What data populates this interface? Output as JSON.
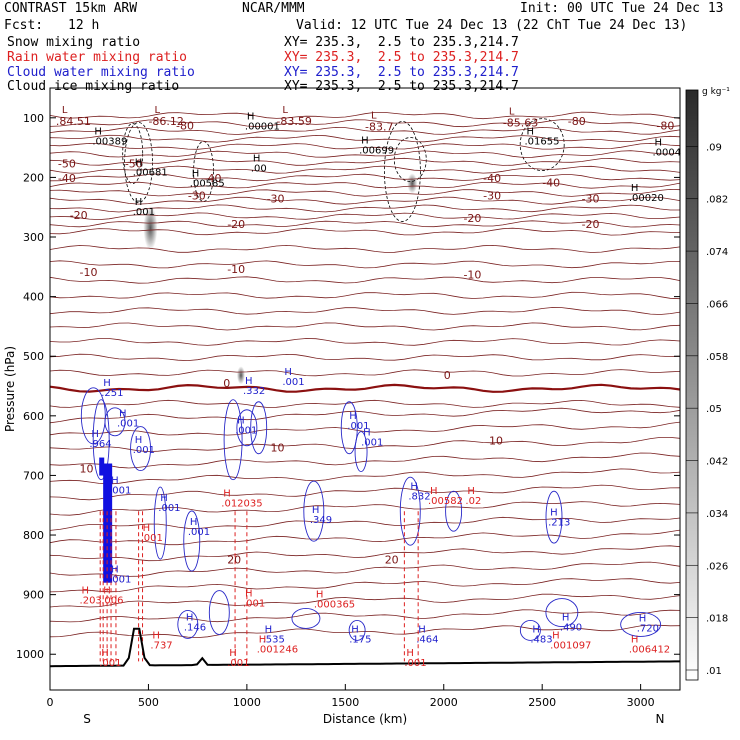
{
  "header": {
    "model": "CONTRAST 15km ARW",
    "org": "NCAR/MMM",
    "init": "Init: 00 UTC Tue 24 Dec 13",
    "fcst_label": "Fcst:",
    "fcst_value": "12 h",
    "valid": "Valid: 12 UTC Tue 24 Dec 13 (22 ChT Tue 24 Dec 13)",
    "fields": [
      {
        "name": "Snow mixing ratio",
        "xy": "XY= 235.3,  2.5 to 235.3,214.7",
        "color": "#000000"
      },
      {
        "name": "Rain water mixing ratio",
        "xy": "XY= 235.3,  2.5 to 235.3,214.7",
        "color": "#dd2020"
      },
      {
        "name": "Cloud water mixing ratio",
        "xy": "XY= 235.3,  2.5 to 235.3,214.7",
        "color": "#2020cc"
      },
      {
        "name": "Cloud ice mixing ratio",
        "xy": "XY= 235.3,  2.5 to 235.3,214.7",
        "color": "#000000"
      }
    ]
  },
  "chart_data": {
    "type": "vertical cross-section",
    "xlabel": "Distance (km)",
    "ylabel": "Pressure (hPa)",
    "x_ticks": [
      0,
      500,
      1000,
      1500,
      2000,
      2500,
      3000
    ],
    "y_ticks": [
      100,
      200,
      300,
      400,
      500,
      600,
      700,
      800,
      900,
      1000
    ],
    "xlim": [
      0,
      3200
    ],
    "ylim": [
      1060,
      50
    ],
    "left_end": "S",
    "right_end": "N",
    "colorbar": {
      "unit": "g kg⁻¹",
      "levels": [
        ".01",
        ".018",
        ".026",
        ".034",
        ".042",
        ".05",
        ".058",
        ".066",
        ".074",
        ".082",
        ".09"
      ]
    },
    "temperature_labels": [
      {
        "x": 40,
        "p": 183,
        "text": "-50"
      },
      {
        "x": 380,
        "p": 183,
        "text": "-50"
      },
      {
        "x": 40,
        "p": 208,
        "text": "-40"
      },
      {
        "x": 780,
        "p": 208,
        "text": "-40"
      },
      {
        "x": 2200,
        "p": 208,
        "text": "-40"
      },
      {
        "x": 2500,
        "p": 215,
        "text": "-40"
      },
      {
        "x": 700,
        "p": 237,
        "text": "-30"
      },
      {
        "x": 1100,
        "p": 242,
        "text": "-30"
      },
      {
        "x": 2200,
        "p": 237,
        "text": "-30"
      },
      {
        "x": 2700,
        "p": 242,
        "text": "-30"
      },
      {
        "x": 100,
        "p": 270,
        "text": "-20"
      },
      {
        "x": 900,
        "p": 285,
        "text": "-20"
      },
      {
        "x": 2100,
        "p": 275,
        "text": "-20"
      },
      {
        "x": 2700,
        "p": 285,
        "text": "-20"
      },
      {
        "x": 150,
        "p": 365,
        "text": "-10"
      },
      {
        "x": 900,
        "p": 360,
        "text": "-10"
      },
      {
        "x": 2100,
        "p": 370,
        "text": "-10"
      },
      {
        "x": 2000,
        "p": 538,
        "text": "0"
      },
      {
        "x": 880,
        "p": 552,
        "text": "0"
      },
      {
        "x": 1120,
        "p": 660,
        "text": "10"
      },
      {
        "x": 2230,
        "p": 648,
        "text": "10"
      },
      {
        "x": 150,
        "p": 695,
        "text": "10"
      },
      {
        "x": 900,
        "p": 848,
        "text": "20"
      },
      {
        "x": 1700,
        "p": 848,
        "text": "20"
      },
      {
        "x": 640,
        "p": 120,
        "text": "-80"
      },
      {
        "x": 2630,
        "p": 112,
        "text": "-80"
      },
      {
        "x": 3080,
        "p": 120,
        "text": "-80"
      }
    ],
    "low_labels": [
      {
        "x": 30,
        "p": 105,
        "text": ".84.51"
      },
      {
        "x": 500,
        "p": 105,
        "text": "-86.12"
      },
      {
        "x": 1150,
        "p": 105,
        "text": "-83.59"
      },
      {
        "x": 1600,
        "p": 115,
        "text": "-83.7"
      },
      {
        "x": 2300,
        "p": 108,
        "text": "-85.63"
      }
    ],
    "ice_maxima": [
      {
        "x": 215,
        "p": 145,
        "text": ".00389"
      },
      {
        "x": 420,
        "p": 197,
        "text": ".00681"
      },
      {
        "x": 710,
        "p": 215,
        "text": ".00585"
      },
      {
        "x": 1020,
        "p": 190,
        "text": ".00"
      },
      {
        "x": 990,
        "p": 120,
        "text": ".00001"
      },
      {
        "x": 1570,
        "p": 160,
        "text": ".00699"
      },
      {
        "x": 2410,
        "p": 145,
        "text": ".01655"
      },
      {
        "x": 3060,
        "p": 163,
        "text": ".0004"
      },
      {
        "x": 2940,
        "p": 240,
        "text": ".00020"
      },
      {
        "x": 420,
        "p": 263,
        "text": ".001"
      }
    ],
    "cloud_water_maxima": [
      {
        "x": 200,
        "p": 652,
        "text": ".964"
      },
      {
        "x": 260,
        "p": 567,
        "text": ".251"
      },
      {
        "x": 340,
        "p": 618,
        "text": ".001"
      },
      {
        "x": 420,
        "p": 662,
        "text": ".001"
      },
      {
        "x": 980,
        "p": 563,
        "text": ".332"
      },
      {
        "x": 1180,
        "p": 548,
        "text": ".001"
      },
      {
        "x": 940,
        "p": 630,
        "text": ".001"
      },
      {
        "x": 1510,
        "p": 622,
        "text": ".001"
      },
      {
        "x": 1580,
        "p": 650,
        "text": ".001"
      },
      {
        "x": 550,
        "p": 760,
        "text": ".001"
      },
      {
        "x": 700,
        "p": 800,
        "text": ".001"
      },
      {
        "x": 1320,
        "p": 780,
        "text": ".349"
      },
      {
        "x": 1820,
        "p": 740,
        "text": ".832"
      },
      {
        "x": 2530,
        "p": 784,
        "text": ".213"
      },
      {
        "x": 300,
        "p": 730,
        "text": ".001"
      },
      {
        "x": 300,
        "p": 880,
        "text": ".001"
      },
      {
        "x": 680,
        "p": 960,
        "text": ".146"
      },
      {
        "x": 1080,
        "p": 980,
        "text": ".535"
      },
      {
        "x": 1520,
        "p": 980,
        "text": ".175"
      },
      {
        "x": 1860,
        "p": 980,
        "text": ".464"
      },
      {
        "x": 2440,
        "p": 980,
        "text": ".483"
      },
      {
        "x": 2590,
        "p": 960,
        "text": ".490"
      },
      {
        "x": 2980,
        "p": 962,
        "text": ".720"
      }
    ],
    "rain_maxima": [
      {
        "x": 870,
        "p": 752,
        "text": ".012035"
      },
      {
        "x": 2110,
        "p": 748,
        "text": ".02"
      },
      {
        "x": 1920,
        "p": 748,
        "text": ".00582"
      },
      {
        "x": 460,
        "p": 810,
        "text": ".001"
      },
      {
        "x": 980,
        "p": 920,
        "text": ".001"
      },
      {
        "x": 1340,
        "p": 922,
        "text": ".000365"
      },
      {
        "x": 150,
        "p": 915,
        "text": ".203"
      },
      {
        "x": 260,
        "p": 915,
        "text": ".006"
      },
      {
        "x": 510,
        "p": 990,
        "text": ".737"
      },
      {
        "x": 1050,
        "p": 997,
        "text": ".001246"
      },
      {
        "x": 2540,
        "p": 990,
        "text": ".001097"
      },
      {
        "x": 2940,
        "p": 997,
        "text": ".006412"
      },
      {
        "x": 250,
        "p": 1020,
        "text": ".001"
      },
      {
        "x": 900,
        "p": 1020,
        "text": ".001"
      },
      {
        "x": 1800,
        "p": 1020,
        "text": ".001"
      }
    ]
  }
}
